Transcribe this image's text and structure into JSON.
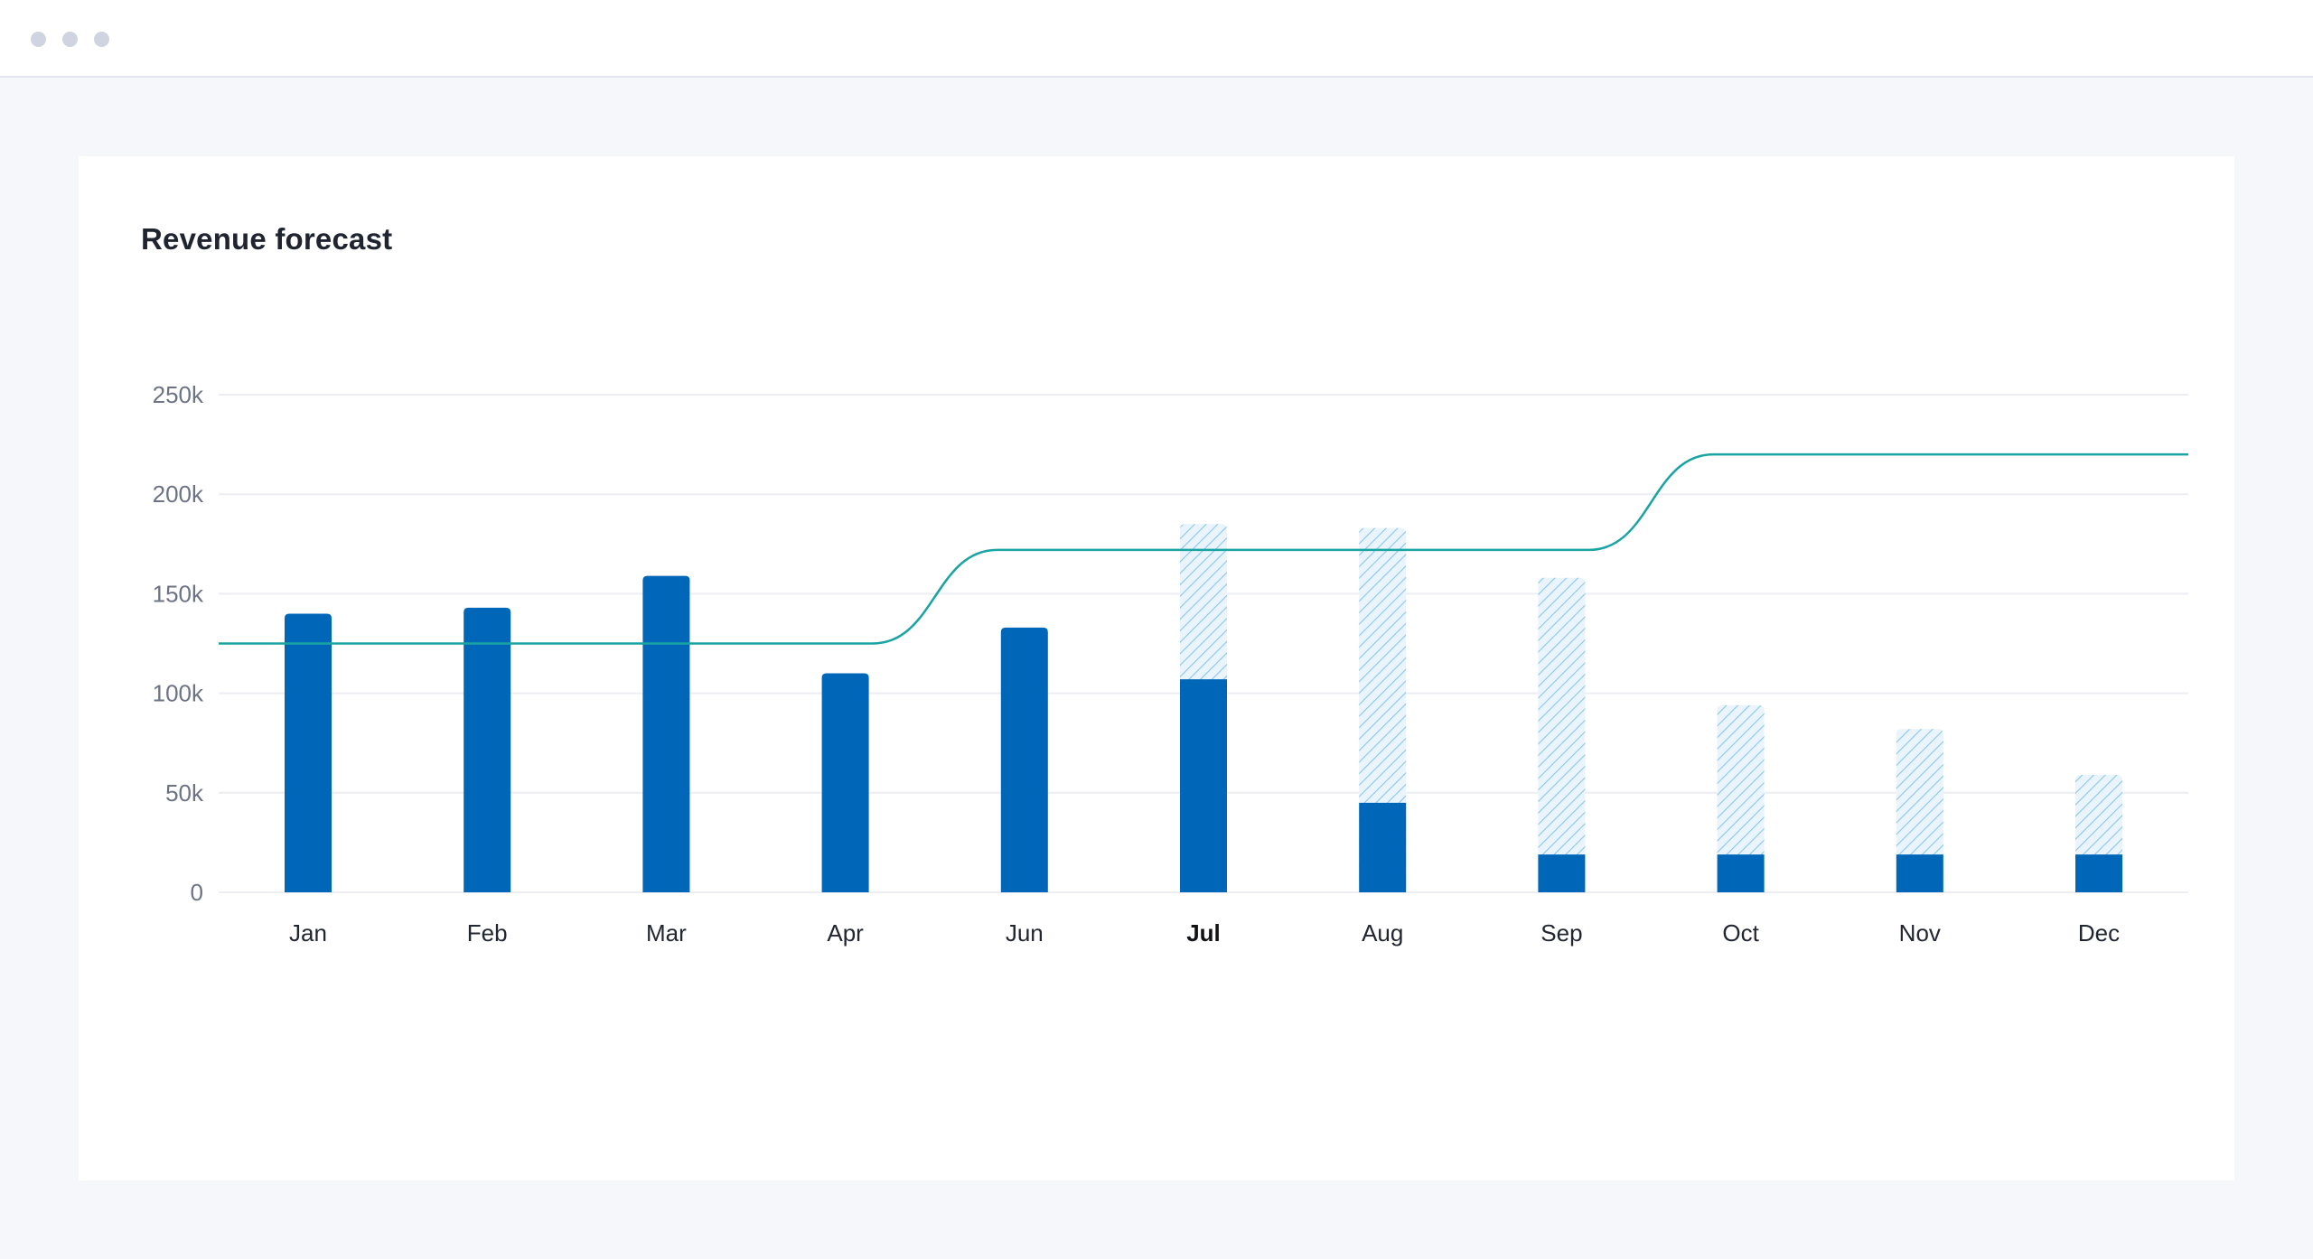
{
  "window": {
    "controls": [
      "dot-icon",
      "dot-icon",
      "dot-icon"
    ]
  },
  "card": {
    "title": "Revenue forecast"
  },
  "colors": {
    "actual": "#0066b8",
    "forecast_hatch": "#8cc6ec",
    "forecast_bg": "#e9f4fc",
    "target_line": "#1aa3a3",
    "grid": "#eceef3"
  },
  "chart_data": {
    "type": "bar",
    "title": "Revenue forecast",
    "categories": [
      "Jan",
      "Feb",
      "Mar",
      "Apr",
      "Jun",
      "Jul",
      "Aug",
      "Sep",
      "Oct",
      "Nov",
      "Dec"
    ],
    "highlighted_category": "Jul",
    "series": [
      {
        "style": "solid",
        "values": [
          140000,
          143000,
          159000,
          110000,
          133000,
          107000,
          45000,
          19000,
          19000,
          19000,
          19000
        ]
      },
      {
        "style": "hatched",
        "values": [
          0,
          0,
          0,
          0,
          0,
          185000,
          183000,
          158000,
          94000,
          82000,
          59000
        ]
      },
      {
        "type": "line",
        "style": "step-smooth",
        "values": [
          125000,
          125000,
          125000,
          125000,
          172000,
          172000,
          172000,
          172000,
          220000,
          220000,
          220000
        ]
      }
    ],
    "y_ticks": [
      "0",
      "50k",
      "100k",
      "150k",
      "200k",
      "250k"
    ],
    "y_tick_values": [
      0,
      50000,
      100000,
      150000,
      200000,
      250000
    ],
    "ylim": [
      0,
      250000
    ],
    "grid": true,
    "legend": "none"
  }
}
